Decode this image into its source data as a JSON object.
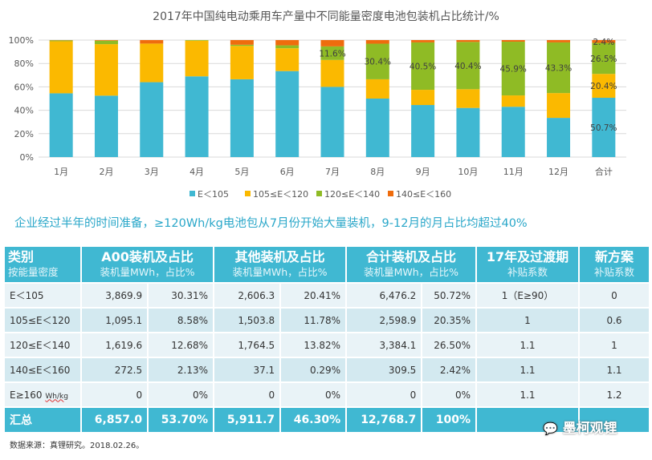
{
  "chart_data": {
    "type": "bar",
    "stacked": true,
    "title": "2017年中国纯电动乘用车产量中不同能量密度电池包装机占比统计/%",
    "categories": [
      "1月",
      "2月",
      "3月",
      "4月",
      "5月",
      "6月",
      "7月",
      "8月",
      "9月",
      "10月",
      "11月",
      "12月",
      "合计"
    ],
    "yticks": [
      "0%",
      "20%",
      "40%",
      "60%",
      "80%",
      "100%"
    ],
    "ylim": [
      0,
      100
    ],
    "grid": true,
    "legend_position": "bottom",
    "series": [
      {
        "name": "E＜105",
        "color": "#40b8d2",
        "values": [
          54.5,
          52.5,
          64,
          69,
          66.5,
          73.5,
          60,
          50,
          44.5,
          42,
          43,
          33.5,
          50.7
        ]
      },
      {
        "name": "105≤E＜120",
        "color": "#fbb900",
        "values": [
          44.5,
          44,
          33,
          30.5,
          28.5,
          19.5,
          23,
          16.5,
          13,
          16,
          9.7,
          21.2,
          20.4
        ]
      },
      {
        "name": "120≤E＜140",
        "color": "#8fbb25",
        "values": [
          0.8,
          3,
          0,
          0.5,
          1,
          2.5,
          11.6,
          30.4,
          40.5,
          40.4,
          45.9,
          43.3,
          26.5
        ]
      },
      {
        "name": "140≤E＜160",
        "color": "#ef6c0d",
        "values": [
          0.2,
          0.5,
          3,
          0,
          4,
          4.5,
          5.4,
          3.1,
          2,
          1.6,
          1.4,
          2,
          2.4
        ]
      }
    ],
    "data_labels": [
      {
        "cat": 6,
        "series": 2,
        "text": "11.6%"
      },
      {
        "cat": 7,
        "series": 2,
        "text": "30.4%"
      },
      {
        "cat": 8,
        "series": 2,
        "text": "40.5%"
      },
      {
        "cat": 9,
        "series": 2,
        "text": "40.4%"
      },
      {
        "cat": 10,
        "series": 2,
        "text": "45.9%"
      },
      {
        "cat": 11,
        "series": 2,
        "text": "43.3%"
      },
      {
        "cat": 12,
        "series": 0,
        "text": "50.7%"
      },
      {
        "cat": 12,
        "series": 1,
        "text": "20.4%"
      },
      {
        "cat": 12,
        "series": 2,
        "text": "26.5%"
      },
      {
        "cat": 12,
        "series": 3,
        "text": "2.4%"
      }
    ]
  },
  "subtitle": "企业经过半年的时间准备，≥120Wh/kg电池包从7月份开始大量装机，9-12月的月占比均超过40%",
  "table": {
    "headers": [
      {
        "title": "类别",
        "sub": "按能量密度"
      },
      {
        "title": "A00装机及占比",
        "sub": "装机量MWh，占比%"
      },
      {
        "title": "其他装机及占比",
        "sub": "装机量MWh，占比%"
      },
      {
        "title": "合计装机及占比",
        "sub": "装机量MWh，占比%"
      },
      {
        "title": "17年及过渡期",
        "sub": "补贴系数"
      },
      {
        "title": "新方案",
        "sub": "补贴系数"
      }
    ],
    "rows": [
      [
        "E＜105",
        "3,869.9",
        "30.31%",
        "2,606.3",
        "20.41%",
        "6,476.2",
        "50.72%",
        "1（E≥90）",
        "0"
      ],
      [
        "105≤E＜120",
        "1,095.1",
        "8.58%",
        "1,503.8",
        "11.78%",
        "2,598.9",
        "20.35%",
        "1",
        "0.6"
      ],
      [
        "120≤E＜140",
        "1,619.6",
        "12.68%",
        "1,764.5",
        "13.82%",
        "3,384.1",
        "26.50%",
        "1.1",
        "1"
      ],
      [
        "140≤E＜160",
        "272.5",
        "2.13%",
        "37.1",
        "0.29%",
        "309.5",
        "2.42%",
        "1.1",
        "1.1"
      ],
      [
        "E≥160",
        "0",
        "0%",
        "0",
        "0%",
        "0",
        "0%",
        "1.1",
        "1.2"
      ]
    ],
    "unit": "Wh/kg",
    "total": [
      "汇总",
      "6,857.0",
      "53.70%",
      "5,911.7",
      "46.30%",
      "12,768.7",
      "100%"
    ]
  },
  "footer": "数据来源：真锂研究。2018.02.26。",
  "watermark": "墨柯观锂"
}
